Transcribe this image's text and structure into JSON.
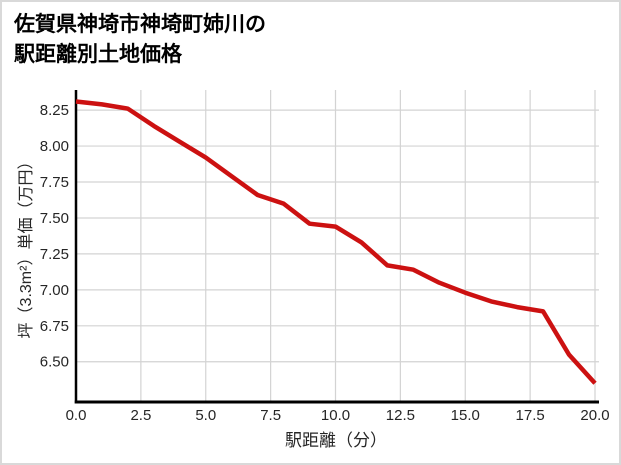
{
  "header": {
    "title_line1": "佐賀県神埼市神埼町姉川の",
    "title_line2": "駅距離別土地価格"
  },
  "chart_data": {
    "type": "line",
    "title": "佐賀県神埼市神埼町姉川の駅距離別土地価格",
    "xlabel": "駅距離（分）",
    "ylabel": "坪（3.3m²）単価（万円）",
    "x": [
      0,
      1,
      2,
      3,
      4,
      5,
      6,
      7,
      8,
      9,
      10,
      11,
      12,
      13,
      14,
      15,
      16,
      17,
      18,
      19,
      20
    ],
    "y": [
      8.31,
      8.29,
      8.26,
      8.14,
      8.03,
      7.92,
      7.79,
      7.66,
      7.6,
      7.46,
      7.44,
      7.33,
      7.17,
      7.14,
      7.05,
      6.98,
      6.92,
      6.88,
      6.85,
      6.55,
      6.35
    ],
    "x_tick_labels": [
      "0.0",
      "2.5",
      "5.0",
      "7.5",
      "10.0",
      "12.5",
      "15.0",
      "17.5",
      "20.0"
    ],
    "y_tick_labels": [
      "6.50",
      "6.75",
      "7.00",
      "7.25",
      "7.50",
      "7.75",
      "8.00",
      "8.25"
    ],
    "xlim": [
      0,
      20
    ],
    "ylim": [
      6.22,
      8.39
    ],
    "grid": true,
    "legend_position": "none",
    "line_color": "#cc1111",
    "axis_color": "#000000",
    "grid_color": "#d3d3d3",
    "text_color": "#262626"
  }
}
